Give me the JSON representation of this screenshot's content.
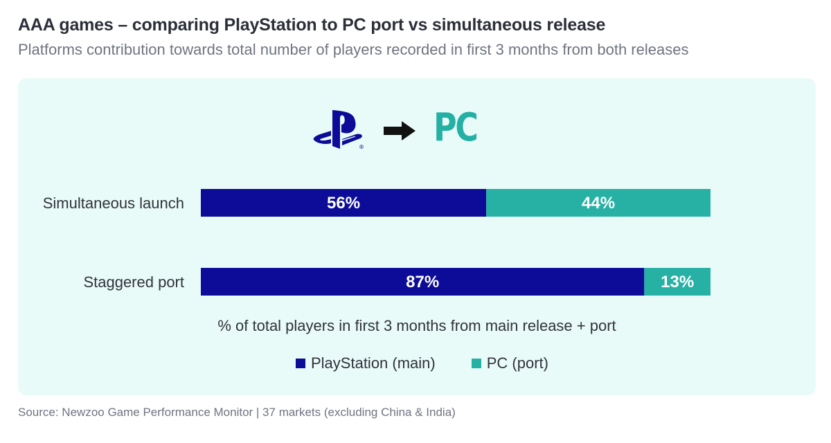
{
  "header": {
    "title": "AAA games – comparing PlayStation to PC port vs simultaneous release",
    "subtitle": "Platforms contribution towards total number of players recorded in first 3 months from both releases"
  },
  "logos": {
    "from": "playstation-logo-icon",
    "arrow": "arrow-right-icon",
    "to_text": "PC"
  },
  "chart_data": {
    "type": "bar",
    "orientation": "horizontal",
    "stacked": true,
    "normalized": true,
    "categories": [
      "Simultaneous launch",
      "Staggered port"
    ],
    "series": [
      {
        "name": "PlayStation (main)",
        "values": [
          56,
          87
        ],
        "labels": [
          "56%",
          "87%"
        ],
        "color": "#0c0c99"
      },
      {
        "name": "PC (port)",
        "values": [
          44,
          13
        ],
        "labels": [
          "44%",
          "13%"
        ],
        "color": "#27b1a5"
      }
    ],
    "xlabel": "% of total players in first 3 months from main release + port",
    "xlim": [
      0,
      100
    ],
    "legend_position": "bottom-center",
    "grid": false
  },
  "footer": {
    "source": "Source: Newzoo Game Performance Monitor | 37 markets (excluding China & India)"
  },
  "colors": {
    "panel_bg": "#e9fbf8",
    "playstation": "#0c0c99",
    "pc": "#27b1a5"
  }
}
